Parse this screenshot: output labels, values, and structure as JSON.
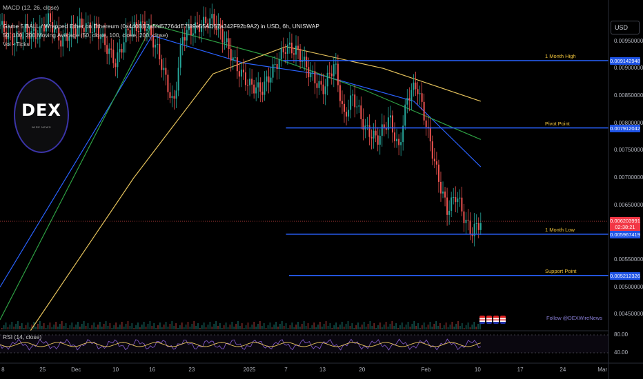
{
  "header": {
    "macd_label": "MACD (12, 26, close)",
    "title": "Game 5 BALL / Wrapped Ether on Ethereum (0x440BB7a5fd57764dE7f89e55AD57a342F92b9A2) in USD, 6h, UNISWAP",
    "ma_label": "50, 100, 200 Moving Average (50, close, 100, close, 200, close)",
    "vol_label": "Vol · Ticks",
    "currency": "USD"
  },
  "rsi": {
    "label": "RSI (14, close)",
    "ticks": [
      "80.00",
      "40.00"
    ]
  },
  "watermark": {
    "logo_text": "DEX",
    "logo_sub": "WIRE NEWS",
    "follow": "Follow @DEXWireNews"
  },
  "price_axis": [
    "0.009500000",
    "0.009000000",
    "0.008500000",
    "0.008000000",
    "0.007500000",
    "0.007000000",
    "0.006500000",
    "0.005500000",
    "0.005000000",
    "0.004500000"
  ],
  "levels": [
    {
      "name": "1 Month High",
      "value": "0.009142948"
    },
    {
      "name": "Pivot Point",
      "value": "0.007912042"
    },
    {
      "name": "1 Month Low",
      "value": "0.005967419"
    },
    {
      "name": "Support Point",
      "value": "0.005212326"
    }
  ],
  "current_price": {
    "value": "0.006203991",
    "countdown": "02:38:21"
  },
  "x_axis": [
    "8",
    "25",
    "Dec",
    "10",
    "16",
    "23",
    "2025",
    "7",
    "13",
    "20",
    "Feb",
    "10",
    "17",
    "24",
    "Mar"
  ],
  "colors": {
    "level_line": "#2962ff",
    "ma50": "#2962ff",
    "ma100": "#2ea043",
    "ma200": "#e6c35c",
    "up": "#26a69a",
    "down": "#ef5350",
    "rsi": "#7e57c2"
  },
  "chart_data": {
    "type": "candlestick",
    "price_range": [
      0.0042,
      0.01
    ],
    "levels": [
      0.009142948,
      0.007912042,
      0.005967419,
      0.005212326
    ],
    "current_price": 0.006203991,
    "close_path": [
      {
        "x": 0.0,
        "y": 0.0098
      },
      {
        "x": 0.02,
        "y": 0.0095
      },
      {
        "x": 0.04,
        "y": 0.0097
      },
      {
        "x": 0.06,
        "y": 0.0096
      },
      {
        "x": 0.08,
        "y": 0.0099
      },
      {
        "x": 0.1,
        "y": 0.0095
      },
      {
        "x": 0.13,
        "y": 0.0098
      },
      {
        "x": 0.16,
        "y": 0.0097
      },
      {
        "x": 0.19,
        "y": 0.0091
      },
      {
        "x": 0.21,
        "y": 0.0097
      },
      {
        "x": 0.24,
        "y": 0.0098
      },
      {
        "x": 0.26,
        "y": 0.0093
      },
      {
        "x": 0.285,
        "y": 0.0083
      },
      {
        "x": 0.3,
        "y": 0.0096
      },
      {
        "x": 0.33,
        "y": 0.0098
      },
      {
        "x": 0.35,
        "y": 0.0099
      },
      {
        "x": 0.37,
        "y": 0.0095
      },
      {
        "x": 0.39,
        "y": 0.009
      },
      {
        "x": 0.41,
        "y": 0.0087
      },
      {
        "x": 0.43,
        "y": 0.0086
      },
      {
        "x": 0.45,
        "y": 0.009
      },
      {
        "x": 0.47,
        "y": 0.0094
      },
      {
        "x": 0.49,
        "y": 0.0093
      },
      {
        "x": 0.51,
        "y": 0.0089
      },
      {
        "x": 0.53,
        "y": 0.0086
      },
      {
        "x": 0.55,
        "y": 0.0091
      },
      {
        "x": 0.565,
        "y": 0.0081
      },
      {
        "x": 0.58,
        "y": 0.0085
      },
      {
        "x": 0.6,
        "y": 0.0079
      },
      {
        "x": 0.62,
        "y": 0.0077
      },
      {
        "x": 0.64,
        "y": 0.0081
      },
      {
        "x": 0.655,
        "y": 0.0075
      },
      {
        "x": 0.67,
        "y": 0.0085
      },
      {
        "x": 0.685,
        "y": 0.0087
      },
      {
        "x": 0.7,
        "y": 0.008
      },
      {
        "x": 0.72,
        "y": 0.007
      },
      {
        "x": 0.735,
        "y": 0.0064
      },
      {
        "x": 0.75,
        "y": 0.0067
      },
      {
        "x": 0.765,
        "y": 0.0062
      },
      {
        "x": 0.775,
        "y": 0.006
      },
      {
        "x": 0.79,
        "y": 0.0062
      }
    ],
    "ma50": [
      [
        0.0,
        0.005
      ],
      [
        0.25,
        0.0096
      ],
      [
        0.4,
        0.0091
      ],
      [
        0.52,
        0.0089
      ],
      [
        0.68,
        0.0084
      ],
      [
        0.79,
        0.0072
      ]
    ],
    "ma100": [
      [
        0.0,
        0.0044
      ],
      [
        0.25,
        0.0098
      ],
      [
        0.45,
        0.0092
      ],
      [
        0.6,
        0.0086
      ],
      [
        0.79,
        0.0077
      ]
    ],
    "ma200": [
      [
        0.05,
        0.0042
      ],
      [
        0.22,
        0.007
      ],
      [
        0.35,
        0.0089
      ],
      [
        0.47,
        0.0094
      ],
      [
        0.63,
        0.009
      ],
      [
        0.79,
        0.0084
      ]
    ]
  }
}
